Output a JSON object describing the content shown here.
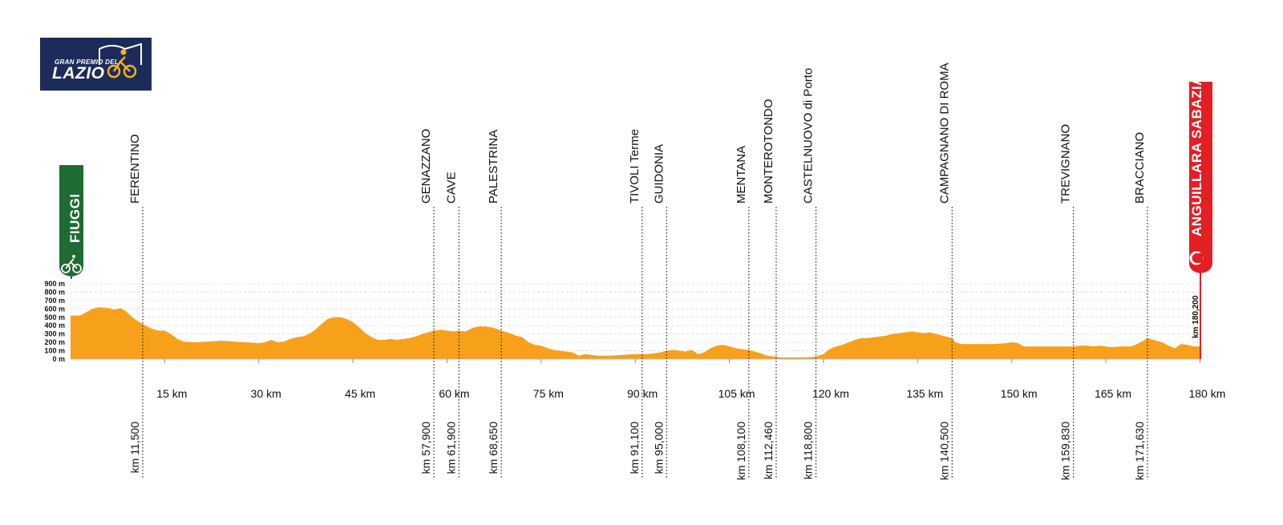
{
  "logo": {
    "line1": "GRAN PREMIO DEL",
    "line2": "LAZIO"
  },
  "start": {
    "name": "FIUGGI",
    "color": "#1e6b34"
  },
  "finish": {
    "name": "ANGUILLARA SABAZIA",
    "km_label": "km 180,200",
    "color": "#e31e24"
  },
  "chart_data": {
    "type": "area",
    "fill_color": "#f7a11a",
    "x_unit": "km",
    "y_unit": "m",
    "xlim": [
      0,
      180.2
    ],
    "ylim": [
      0,
      900
    ],
    "x_ticks": [
      {
        "value": 15,
        "label": "15 km"
      },
      {
        "value": 30,
        "label": "30 km"
      },
      {
        "value": 45,
        "label": "45 km"
      },
      {
        "value": 60,
        "label": "60 km"
      },
      {
        "value": 75,
        "label": "75 km"
      },
      {
        "value": 90,
        "label": "90 km"
      },
      {
        "value": 105,
        "label": "105 km"
      },
      {
        "value": 120,
        "label": "120 km"
      },
      {
        "value": 135,
        "label": "135 km"
      },
      {
        "value": 150,
        "label": "150 km"
      },
      {
        "value": 165,
        "label": "165 km"
      },
      {
        "value": 180,
        "label": "180 km"
      }
    ],
    "y_ticks": [
      {
        "value": 0,
        "label": "0 m"
      },
      {
        "value": 100,
        "label": "100 m"
      },
      {
        "value": 200,
        "label": "200 m"
      },
      {
        "value": 300,
        "label": "300 m"
      },
      {
        "value": 400,
        "label": "400 m"
      },
      {
        "value": 500,
        "label": "500 m"
      },
      {
        "value": 600,
        "label": "600 m"
      },
      {
        "value": 700,
        "label": "700 m"
      },
      {
        "value": 800,
        "label": "800 m"
      },
      {
        "value": 900,
        "label": "900 m"
      }
    ],
    "profile": [
      [
        0,
        520
      ],
      [
        1.5,
        520
      ],
      [
        2.5,
        560
      ],
      [
        3.5,
        600
      ],
      [
        4.5,
        620
      ],
      [
        6,
        610
      ],
      [
        7,
        590
      ],
      [
        8,
        610
      ],
      [
        9,
        560
      ],
      [
        10,
        490
      ],
      [
        11,
        440
      ],
      [
        11.5,
        420
      ],
      [
        12,
        400
      ],
      [
        13,
        360
      ],
      [
        14,
        340
      ],
      [
        15,
        340
      ],
      [
        16,
        300
      ],
      [
        17,
        240
      ],
      [
        18,
        210
      ],
      [
        20,
        200
      ],
      [
        22,
        210
      ],
      [
        24,
        220
      ],
      [
        26,
        210
      ],
      [
        28,
        200
      ],
      [
        30,
        190
      ],
      [
        31,
        200
      ],
      [
        32,
        230
      ],
      [
        33,
        200
      ],
      [
        34,
        210
      ],
      [
        35,
        240
      ],
      [
        36,
        260
      ],
      [
        37,
        270
      ],
      [
        38,
        300
      ],
      [
        39,
        350
      ],
      [
        40,
        420
      ],
      [
        41,
        480
      ],
      [
        42,
        500
      ],
      [
        43,
        500
      ],
      [
        44,
        480
      ],
      [
        45,
        440
      ],
      [
        46,
        380
      ],
      [
        47,
        310
      ],
      [
        48,
        260
      ],
      [
        49,
        230
      ],
      [
        50,
        230
      ],
      [
        51,
        240
      ],
      [
        52,
        230
      ],
      [
        53,
        240
      ],
      [
        54,
        250
      ],
      [
        55,
        270
      ],
      [
        56,
        300
      ],
      [
        57,
        320
      ],
      [
        57.9,
        340
      ],
      [
        59,
        350
      ],
      [
        60,
        340
      ],
      [
        61,
        330
      ],
      [
        61.9,
        340
      ],
      [
        63,
        330
      ],
      [
        64,
        370
      ],
      [
        65,
        390
      ],
      [
        66,
        390
      ],
      [
        67,
        380
      ],
      [
        68,
        360
      ],
      [
        68.65,
        340
      ],
      [
        70,
        310
      ],
      [
        71,
        280
      ],
      [
        72,
        260
      ],
      [
        73,
        200
      ],
      [
        74,
        170
      ],
      [
        75,
        160
      ],
      [
        76,
        130
      ],
      [
        77,
        110
      ],
      [
        78,
        100
      ],
      [
        79,
        90
      ],
      [
        80,
        80
      ],
      [
        81,
        40
      ],
      [
        82,
        60
      ],
      [
        83,
        50
      ],
      [
        84,
        40
      ],
      [
        86,
        40
      ],
      [
        88,
        50
      ],
      [
        90,
        60
      ],
      [
        91.1,
        60
      ],
      [
        92,
        60
      ],
      [
        93,
        70
      ],
      [
        94,
        80
      ],
      [
        95,
        100
      ],
      [
        96,
        110
      ],
      [
        97,
        100
      ],
      [
        98,
        90
      ],
      [
        99,
        110
      ],
      [
        100,
        60
      ],
      [
        101,
        80
      ],
      [
        102,
        130
      ],
      [
        103,
        160
      ],
      [
        104,
        170
      ],
      [
        105,
        150
      ],
      [
        106,
        130
      ],
      [
        107,
        120
      ],
      [
        108.1,
        110
      ],
      [
        109,
        90
      ],
      [
        110,
        70
      ],
      [
        111,
        40
      ],
      [
        112.46,
        30
      ],
      [
        113,
        20
      ],
      [
        115,
        20
      ],
      [
        117,
        20
      ],
      [
        118.8,
        30
      ],
      [
        120,
        60
      ],
      [
        121,
        120
      ],
      [
        122,
        150
      ],
      [
        123,
        170
      ],
      [
        124,
        200
      ],
      [
        125,
        230
      ],
      [
        126,
        250
      ],
      [
        127,
        250
      ],
      [
        128,
        260
      ],
      [
        129,
        270
      ],
      [
        130,
        280
      ],
      [
        131,
        300
      ],
      [
        132,
        310
      ],
      [
        133,
        320
      ],
      [
        134,
        330
      ],
      [
        135,
        320
      ],
      [
        136,
        310
      ],
      [
        137,
        320
      ],
      [
        138,
        300
      ],
      [
        139,
        280
      ],
      [
        140.5,
        250
      ],
      [
        141,
        200
      ],
      [
        142,
        180
      ],
      [
        143,
        180
      ],
      [
        145,
        180
      ],
      [
        147,
        180
      ],
      [
        149,
        190
      ],
      [
        150,
        200
      ],
      [
        151,
        190
      ],
      [
        152,
        150
      ],
      [
        154,
        150
      ],
      [
        156,
        150
      ],
      [
        158,
        150
      ],
      [
        159.83,
        150
      ],
      [
        161,
        160
      ],
      [
        162,
        160
      ],
      [
        163,
        150
      ],
      [
        164,
        160
      ],
      [
        165,
        150
      ],
      [
        166,
        140
      ],
      [
        167,
        150
      ],
      [
        168,
        150
      ],
      [
        169,
        150
      ],
      [
        170,
        180
      ],
      [
        171,
        220
      ],
      [
        171.63,
        250
      ],
      [
        172,
        240
      ],
      [
        173,
        220
      ],
      [
        174,
        200
      ],
      [
        175,
        160
      ],
      [
        176,
        130
      ],
      [
        177,
        180
      ],
      [
        178,
        170
      ],
      [
        179,
        150
      ],
      [
        180.2,
        150
      ]
    ],
    "waypoints": [
      {
        "km": 11.5,
        "name": "FERENTINO",
        "label": "km 11,500"
      },
      {
        "km": 57.9,
        "name": "GENAZZANO",
        "label": "km 57,900"
      },
      {
        "km": 61.9,
        "name": "CAVE",
        "label": "km 61,900"
      },
      {
        "km": 68.65,
        "name": "PALESTRINA",
        "label": "km 68,650"
      },
      {
        "km": 91.1,
        "name": "TIVOLI Terme",
        "label": "km 91,100"
      },
      {
        "km": 95.0,
        "name": "GUIDONIA",
        "label": "km 95,000"
      },
      {
        "km": 108.1,
        "name": "MENTANA",
        "label": "km 108,100"
      },
      {
        "km": 112.46,
        "name": "MONTEROTONDO",
        "label": "km 112,460"
      },
      {
        "km": 118.8,
        "name": "CASTELNUOVO di Porto",
        "label": "km 118,800"
      },
      {
        "km": 140.5,
        "name": "CAMPAGNANO DI ROMA",
        "label": "km 140,500"
      },
      {
        "km": 159.83,
        "name": "TREVIGNANO",
        "label": "km 159,830"
      },
      {
        "km": 171.63,
        "name": "BRACCIANO",
        "label": "km 171,630"
      }
    ]
  }
}
